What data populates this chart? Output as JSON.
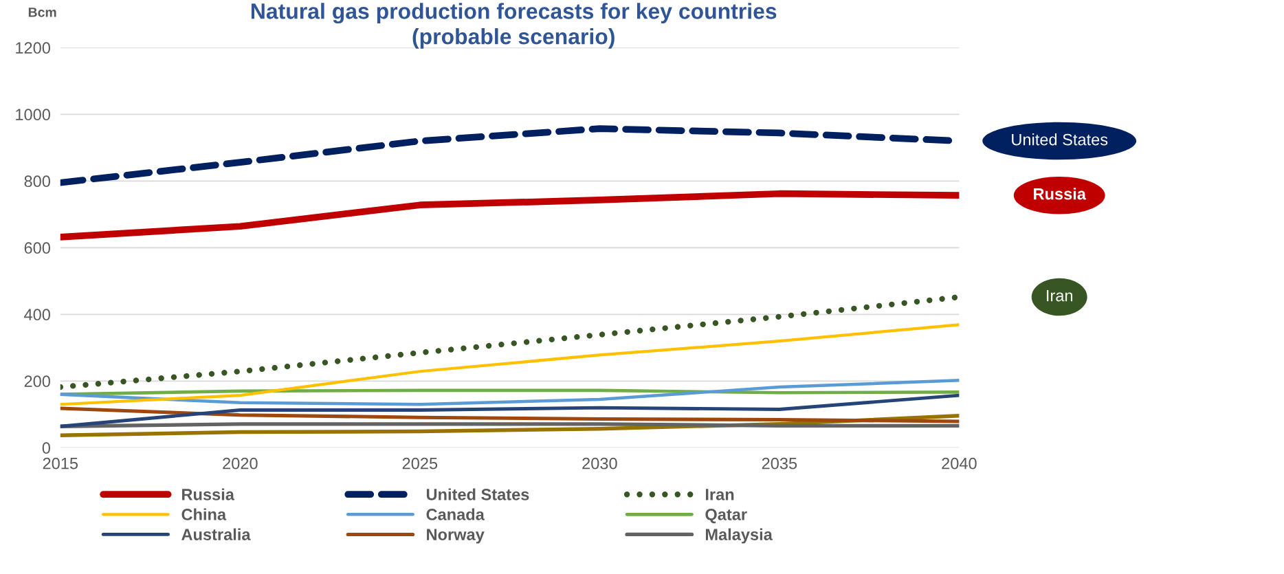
{
  "chart_data": {
    "type": "line",
    "title": "Natural gas production forecasts for key countries\n(probable scenario)",
    "ylabel": "Bcm",
    "x": [
      2015,
      2020,
      2025,
      2030,
      2035,
      2040
    ],
    "xlim": [
      2015,
      2040
    ],
    "xticks": [
      2015,
      2020,
      2025,
      2030,
      2035,
      2040
    ],
    "ylim": [
      0,
      1200
    ],
    "yticks": [
      0,
      200,
      400,
      600,
      800,
      1000,
      1200
    ],
    "grid": "y",
    "legend": "bottom",
    "marker": "none",
    "series": [
      {
        "name": "Russia",
        "color": "#c00000",
        "line_style": "solid",
        "values": [
          632,
          664,
          728,
          743,
          762,
          757
        ]
      },
      {
        "name": "United States",
        "color": "#002060",
        "line_style": "dashed",
        "values": [
          795,
          856,
          920,
          957,
          944,
          920
        ]
      },
      {
        "name": "Iran",
        "color": "#375623",
        "line_style": "dotted",
        "values": [
          182,
          229,
          285,
          339,
          393,
          452
        ]
      },
      {
        "name": "China",
        "color": "#ffc000",
        "line_style": "solid",
        "values": [
          130,
          157,
          229,
          278,
          320,
          369
        ]
      },
      {
        "name": "Canada",
        "color": "#5b9bd5",
        "line_style": "solid",
        "values": [
          160,
          135,
          130,
          145,
          182,
          202
        ]
      },
      {
        "name": "Qatar",
        "color": "#70ad47",
        "line_style": "solid",
        "values": [
          160,
          170,
          172,
          172,
          165,
          167
        ]
      },
      {
        "name": "Australia",
        "color": "#264478",
        "line_style": "solid",
        "values": [
          64,
          113,
          113,
          120,
          115,
          157
        ]
      },
      {
        "name": "Norway",
        "color": "#9e480e",
        "line_style": "solid",
        "values": [
          118,
          98,
          91,
          86,
          84,
          79
        ]
      },
      {
        "name": "Malaysia",
        "color": "#636363",
        "line_style": "solid",
        "values": [
          64,
          71,
          71,
          71,
          66,
          66
        ]
      },
      {
        "color": "#997300",
        "line_style": "solid",
        "values": [
          37,
          47,
          49,
          57,
          71,
          96
        ]
      }
    ],
    "annotations": [
      "Russia",
      "United States",
      "Iran"
    ]
  }
}
